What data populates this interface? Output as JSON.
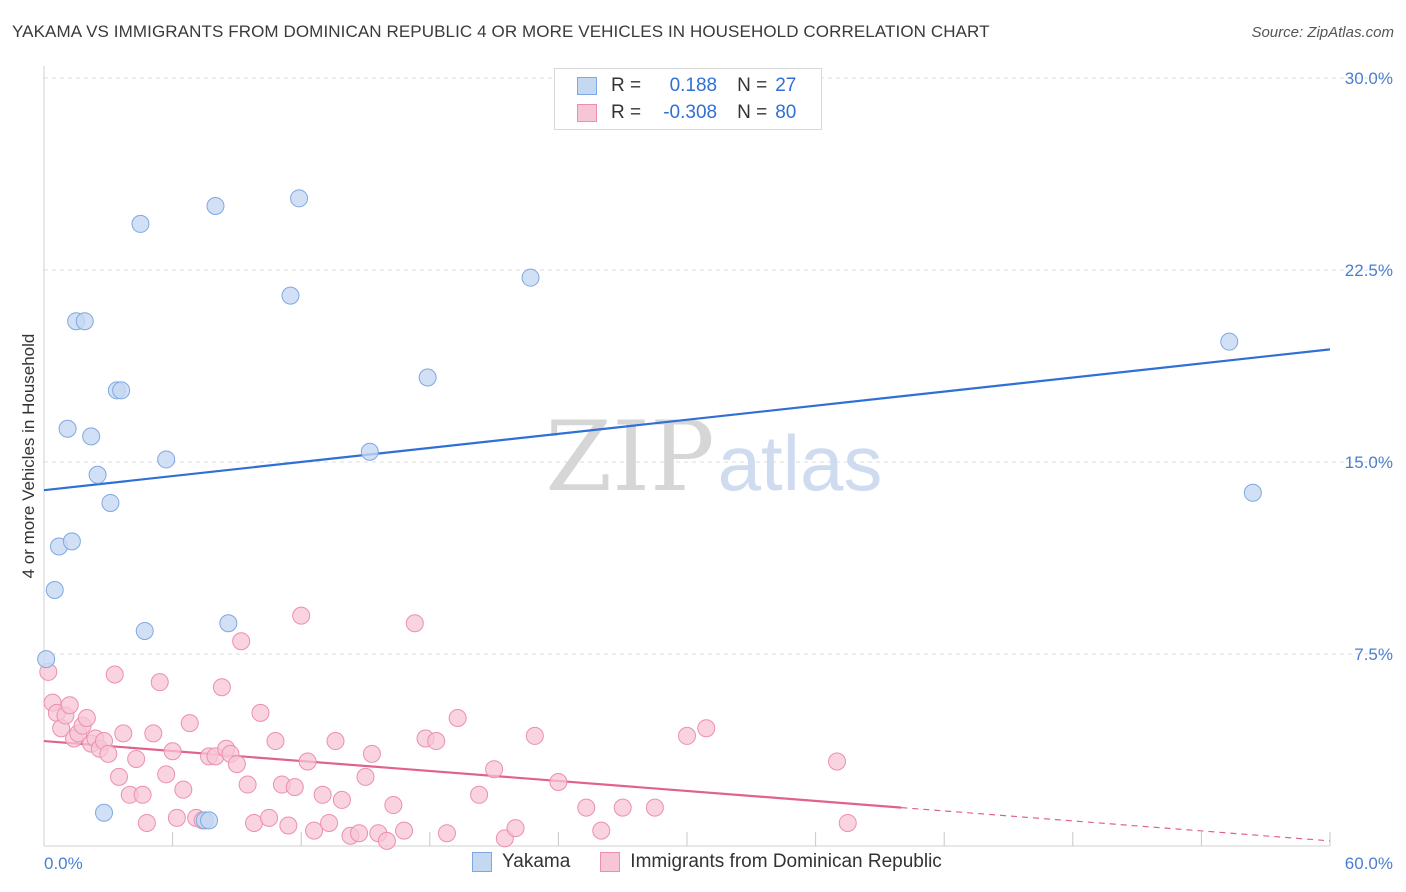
{
  "title": "YAKAMA VS IMMIGRANTS FROM DOMINICAN REPUBLIC 4 OR MORE VEHICLES IN HOUSEHOLD CORRELATION CHART",
  "source": "Source: ZipAtlas.com",
  "watermark": {
    "zip": "ZIP",
    "atlas": "atlas"
  },
  "colors": {
    "blue_fill": "#c5d8f2",
    "blue_stroke": "#7ea8e3",
    "blue_line": "#2f6fd6",
    "pink_fill": "#f7c6d6",
    "pink_stroke": "#ec8fae",
    "pink_line": "#e0628f",
    "axis_text": "#4a7fd0",
    "grid": "#dcdcdc"
  },
  "legend_top": {
    "rows": [
      {
        "r_label": "R =",
        "r_value": "0.188",
        "n_label": "N =",
        "n_value": "27"
      },
      {
        "r_label": "R =",
        "r_value": "-0.308",
        "n_label": "N =",
        "n_value": "80"
      }
    ]
  },
  "chart_data": {
    "type": "scatter",
    "title": "YAKAMA VS IMMIGRANTS FROM DOMINICAN REPUBLIC 4 OR MORE VEHICLES IN HOUSEHOLD CORRELATION CHART",
    "xlabel": "",
    "ylabel": "4 or more Vehicles in Household",
    "xlim": [
      0,
      60
    ],
    "ylim": [
      0,
      30
    ],
    "x_tick_labels": [
      {
        "value": 0,
        "label": "0.0%"
      },
      {
        "value": 60,
        "label": "60.0%"
      }
    ],
    "y_tick_labels": [
      {
        "value": 7.5,
        "label": "7.5%"
      },
      {
        "value": 15,
        "label": "15.0%"
      },
      {
        "value": 22.5,
        "label": "22.5%"
      },
      {
        "value": 30,
        "label": "30.0%"
      }
    ],
    "grid": true,
    "legend_position": "bottom",
    "series": [
      {
        "name": "Yakama",
        "color": "blue",
        "points": [
          [
            0.1,
            7.3
          ],
          [
            0.5,
            10.0
          ],
          [
            0.7,
            11.7
          ],
          [
            1.1,
            16.3
          ],
          [
            1.3,
            11.9
          ],
          [
            1.5,
            20.5
          ],
          [
            1.9,
            20.5
          ],
          [
            2.2,
            16.0
          ],
          [
            2.5,
            14.5
          ],
          [
            2.8,
            1.3
          ],
          [
            3.1,
            13.4
          ],
          [
            3.4,
            17.8
          ],
          [
            3.6,
            17.8
          ],
          [
            4.5,
            24.3
          ],
          [
            4.7,
            8.4
          ],
          [
            5.7,
            15.1
          ],
          [
            7.5,
            1.0
          ],
          [
            7.7,
            1.0
          ],
          [
            8.0,
            25.0
          ],
          [
            8.6,
            8.7
          ],
          [
            11.5,
            21.5
          ],
          [
            11.9,
            25.3
          ],
          [
            15.2,
            15.4
          ],
          [
            17.9,
            18.3
          ],
          [
            22.7,
            22.2
          ],
          [
            55.3,
            19.7
          ],
          [
            56.4,
            13.8
          ]
        ],
        "trendline": {
          "x": [
            0,
            60
          ],
          "y": [
            13.9,
            19.4
          ]
        }
      },
      {
        "name": "Immigrants from Dominican Republic",
        "color": "pink",
        "points": [
          [
            0.2,
            6.8
          ],
          [
            0.4,
            5.6
          ],
          [
            0.6,
            5.2
          ],
          [
            0.8,
            4.6
          ],
          [
            1.0,
            5.1
          ],
          [
            1.2,
            5.5
          ],
          [
            1.4,
            4.2
          ],
          [
            1.6,
            4.4
          ],
          [
            1.8,
            4.7
          ],
          [
            2.0,
            5.0
          ],
          [
            2.2,
            4.0
          ],
          [
            2.4,
            4.2
          ],
          [
            2.6,
            3.8
          ],
          [
            2.8,
            4.1
          ],
          [
            3.0,
            3.6
          ],
          [
            3.3,
            6.7
          ],
          [
            3.5,
            2.7
          ],
          [
            3.7,
            4.4
          ],
          [
            4.0,
            2.0
          ],
          [
            4.3,
            3.4
          ],
          [
            4.6,
            2.0
          ],
          [
            4.8,
            0.9
          ],
          [
            5.1,
            4.4
          ],
          [
            5.4,
            6.4
          ],
          [
            5.7,
            2.8
          ],
          [
            6.0,
            3.7
          ],
          [
            6.2,
            1.1
          ],
          [
            6.5,
            2.2
          ],
          [
            6.8,
            4.8
          ],
          [
            7.1,
            1.1
          ],
          [
            7.4,
            1.0
          ],
          [
            7.7,
            3.5
          ],
          [
            8.0,
            3.5
          ],
          [
            8.3,
            6.2
          ],
          [
            8.5,
            3.8
          ],
          [
            8.7,
            3.6
          ],
          [
            9.0,
            3.2
          ],
          [
            9.2,
            8.0
          ],
          [
            9.5,
            2.4
          ],
          [
            9.8,
            0.9
          ],
          [
            10.1,
            5.2
          ],
          [
            10.5,
            1.1
          ],
          [
            10.8,
            4.1
          ],
          [
            11.1,
            2.4
          ],
          [
            11.4,
            0.8
          ],
          [
            11.7,
            2.3
          ],
          [
            12.0,
            9.0
          ],
          [
            12.3,
            3.3
          ],
          [
            12.6,
            0.6
          ],
          [
            13.0,
            2.0
          ],
          [
            13.3,
            0.9
          ],
          [
            13.6,
            4.1
          ],
          [
            13.9,
            1.8
          ],
          [
            14.3,
            0.4
          ],
          [
            14.7,
            0.5
          ],
          [
            15.0,
            2.7
          ],
          [
            15.3,
            3.6
          ],
          [
            15.6,
            0.5
          ],
          [
            16.0,
            0.2
          ],
          [
            16.3,
            1.6
          ],
          [
            16.8,
            0.6
          ],
          [
            17.3,
            8.7
          ],
          [
            17.8,
            4.2
          ],
          [
            18.3,
            4.1
          ],
          [
            18.8,
            0.5
          ],
          [
            19.3,
            5.0
          ],
          [
            20.3,
            2.0
          ],
          [
            21.0,
            3.0
          ],
          [
            21.5,
            0.3
          ],
          [
            22.0,
            0.7
          ],
          [
            22.9,
            4.3
          ],
          [
            24.0,
            2.5
          ],
          [
            25.3,
            1.5
          ],
          [
            26.0,
            0.6
          ],
          [
            27.0,
            1.5
          ],
          [
            28.5,
            1.5
          ],
          [
            30.0,
            4.3
          ],
          [
            30.9,
            4.6
          ],
          [
            37.0,
            3.3
          ],
          [
            37.5,
            0.9
          ]
        ],
        "trendline": {
          "x": [
            0,
            40
          ],
          "y": [
            4.1,
            1.5
          ]
        },
        "trendline_extension": {
          "x": [
            40,
            60
          ],
          "y": [
            1.5,
            0.2
          ]
        }
      }
    ]
  },
  "legend_bottom": [
    {
      "label": "Yakama",
      "color": "blue"
    },
    {
      "label": "Immigrants from Dominican Republic",
      "color": "pink"
    }
  ]
}
